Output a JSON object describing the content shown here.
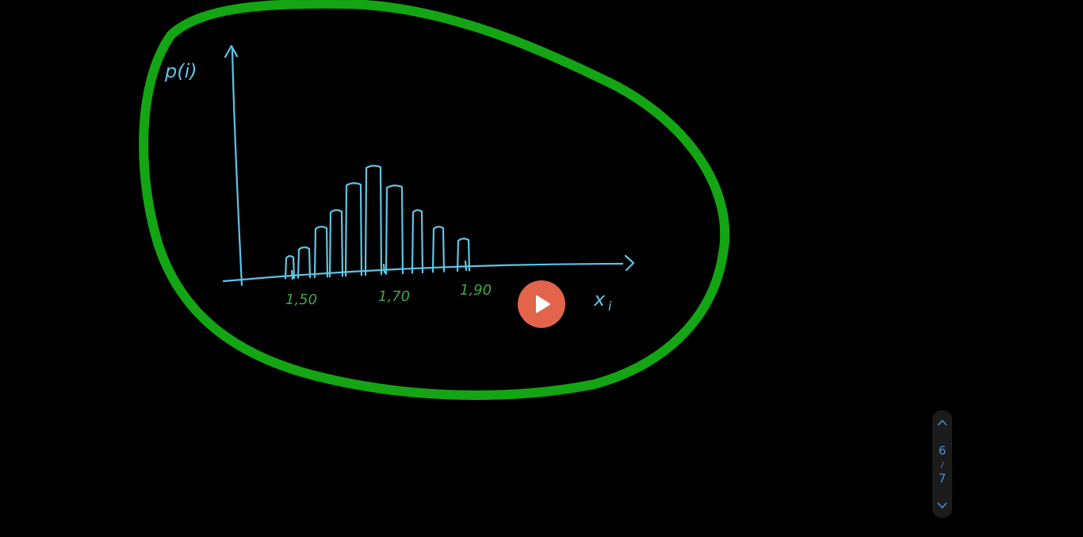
{
  "sketch": {
    "y_label": "p(i)",
    "x_label": "x",
    "x_label_sub": "i",
    "x_ticks": [
      "1,50",
      "1,70",
      "1,90"
    ]
  },
  "pager": {
    "current": "6",
    "separator": "/",
    "total": "7"
  }
}
